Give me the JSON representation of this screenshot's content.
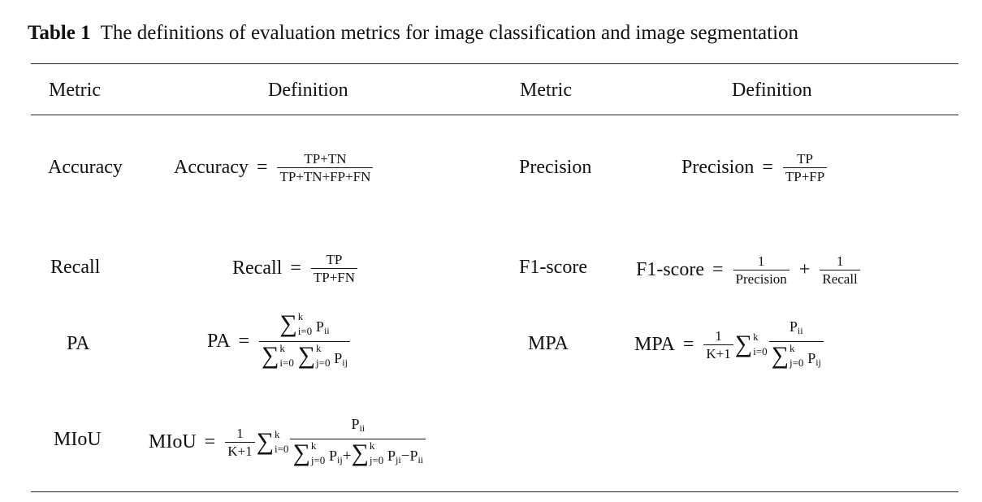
{
  "caption": {
    "label": "Table 1",
    "text": "The definitions of evaluation metrics for image classification and image segmentation"
  },
  "headers": {
    "metric_1": "Metric",
    "definition_1": "Definition",
    "metric_2": "Metric",
    "definition_2": "Definition"
  },
  "rows": {
    "accuracy": {
      "metric": "Accuracy",
      "lhs": "Accuracy",
      "eq": "=",
      "num": "TP+TN",
      "den": "TP+TN+FP+FN"
    },
    "precision": {
      "metric": "Precision",
      "lhs": "Precision",
      "eq": "=",
      "num": "TP",
      "den": "TP+FP"
    },
    "recall": {
      "metric": "Recall",
      "lhs": "Recall",
      "eq": "=",
      "num": "TP",
      "den": "TP+FN"
    },
    "f1": {
      "metric": "F1-score",
      "lhs": "F1-score",
      "eq": "=",
      "one_a": "1",
      "den_a": "Precision",
      "plus": "+",
      "one_b": "1",
      "den_b": "Recall"
    },
    "pa": {
      "metric": "PA",
      "lhs": "PA",
      "eq": "=",
      "sigma": "∑",
      "k": "k",
      "i0": "i=0",
      "j0": "j=0",
      "P": "P",
      "ii": "ii",
      "ij": "ij"
    },
    "mpa": {
      "metric": "MPA",
      "lhs": "MPA",
      "eq": "=",
      "one": "1",
      "kp1": "K+1",
      "sigma": "∑",
      "k": "k",
      "i0": "i=0",
      "j0": "j=0",
      "P": "P",
      "ii": "ii",
      "ij": "ij"
    },
    "miou": {
      "metric": "MIoU",
      "lhs": "MIoU",
      "eq": "=",
      "one": "1",
      "kp1": "K+1",
      "sigma": "∑",
      "k": "k",
      "i0": "i=0",
      "j0": "j=0",
      "P": "P",
      "ii": "ii",
      "ij": "ij",
      "ji": "ji",
      "plus": "+",
      "minus": "−"
    }
  }
}
